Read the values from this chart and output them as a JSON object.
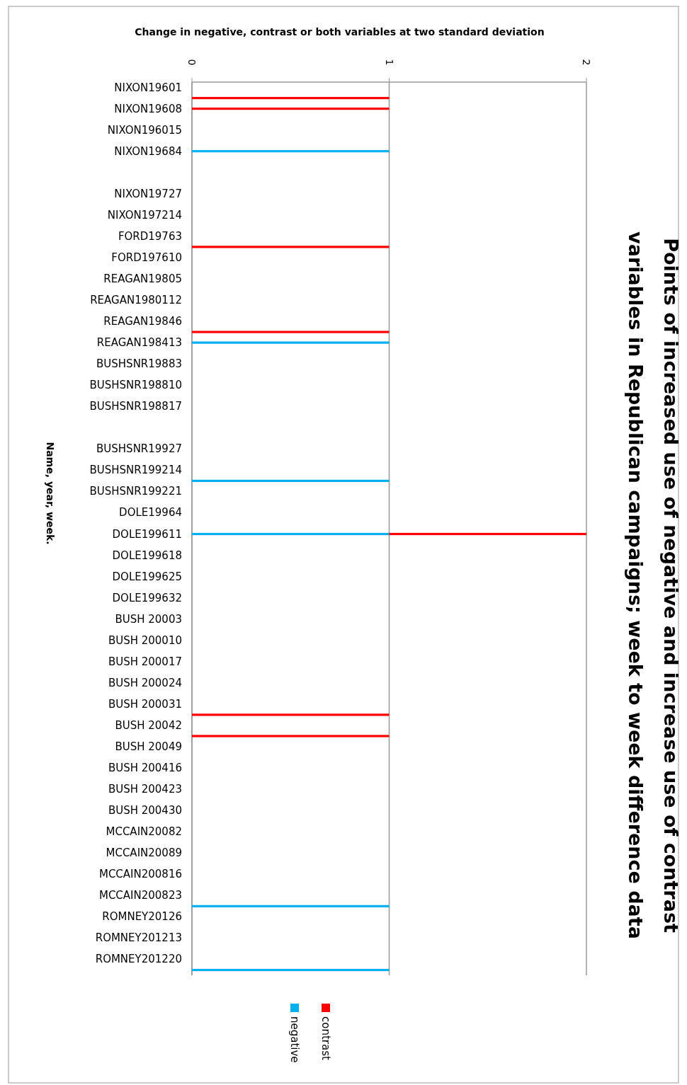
{
  "chart_data": {
    "type": "bar",
    "orientation": "horizontal",
    "stacked": true,
    "title": "Points of increased use of negative and increase use of contrast variables in Republican campaigns; week to week difference data",
    "subtitle": "Change in negative, contrast or both variables at two standard deviation",
    "ylabel": "Name, year, week.",
    "categories": [
      "NIXON19601",
      null,
      "NIXON19608",
      null,
      "NIXON196015",
      null,
      "NIXON19684",
      null,
      null,
      null,
      "NIXON19727",
      null,
      "NIXON197214",
      null,
      "FORD19763",
      null,
      "FORD197610",
      null,
      "REAGAN19805",
      null,
      "REAGAN1980112",
      null,
      "REAGAN19846",
      null,
      "REAGAN198413",
      null,
      "BUSHSNR19883",
      null,
      "BUSHSNR198810",
      null,
      "BUSHSNR198817",
      null,
      null,
      null,
      "BUSHSNR19927",
      null,
      "BUSHSNR199214",
      null,
      "BUSHSNR199221",
      null,
      "DOLE19964",
      null,
      "DOLE199611",
      null,
      "DOLE199618",
      null,
      "DOLE199625",
      null,
      "DOLE199632",
      null,
      "BUSH 20003",
      null,
      "BUSH 200010",
      null,
      "BUSH 200017",
      null,
      "BUSH 200024",
      null,
      "BUSH 200031",
      null,
      "BUSH 20042",
      null,
      "BUSH 20049",
      null,
      "BUSH 200416",
      null,
      "BUSH 200423",
      null,
      "BUSH 200430",
      null,
      "MCCAIN20082",
      null,
      "MCCAIN20089",
      null,
      "MCCAIN200816",
      null,
      "MCCAIN200823",
      null,
      "ROMNEY20126",
      null,
      "ROMNEY201213",
      null,
      "ROMNEY201220",
      null
    ],
    "series": [
      {
        "name": "negative",
        "color": "#00b0f0",
        "values": [
          0,
          0,
          0,
          0,
          0,
          0,
          1,
          0,
          0,
          0,
          0,
          0,
          0,
          0,
          0,
          0,
          0,
          0,
          0,
          0,
          0,
          0,
          0,
          0,
          1,
          0,
          0,
          0,
          0,
          0,
          0,
          0,
          0,
          0,
          0,
          0,
          0,
          1,
          0,
          0,
          0,
          0,
          1,
          0,
          0,
          0,
          0,
          0,
          0,
          0,
          0,
          0,
          0,
          0,
          0,
          0,
          0,
          0,
          0,
          0,
          0,
          0,
          0,
          0,
          0,
          0,
          0,
          0,
          0,
          0,
          0,
          0,
          0,
          0,
          0,
          0,
          0,
          1,
          0,
          0,
          0,
          0,
          0,
          1
        ]
      },
      {
        "name": "contrast",
        "color": "#ff0000",
        "values": [
          0,
          1,
          1,
          0,
          0,
          0,
          0,
          0,
          0,
          0,
          0,
          0,
          0,
          0,
          0,
          1,
          0,
          0,
          0,
          0,
          0,
          0,
          0,
          1,
          0,
          0,
          0,
          0,
          0,
          0,
          0,
          0,
          0,
          0,
          0,
          0,
          0,
          0,
          0,
          0,
          0,
          0,
          1,
          0,
          0,
          0,
          0,
          0,
          0,
          0,
          0,
          0,
          0,
          0,
          0,
          0,
          0,
          0,
          0,
          1,
          0,
          1,
          0,
          0,
          0,
          0,
          0,
          0,
          0,
          0,
          0,
          0,
          0,
          0,
          0,
          0,
          0,
          0,
          0,
          0,
          0,
          0,
          0,
          0
        ]
      }
    ],
    "xlim": [
      0,
      2
    ],
    "xticks": [
      0,
      1,
      2
    ],
    "grid": "x",
    "legend": "bottom"
  }
}
